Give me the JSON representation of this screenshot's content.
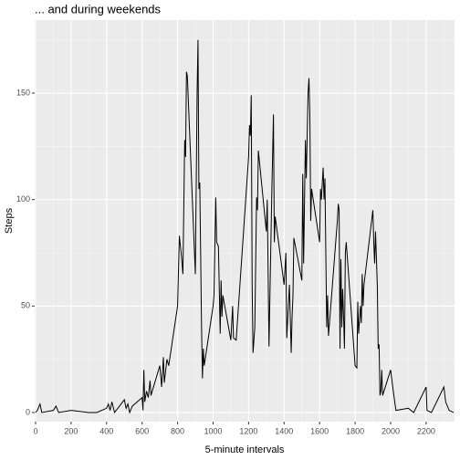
{
  "chart_data": {
    "type": "line",
    "title": "... and during weekends",
    "x_label": "5-minute intervals",
    "y_label": "Steps",
    "series": [
      {
        "name": "Steps",
        "color": "#000000",
        "x": [
          0,
          10,
          25,
          35,
          100,
          115,
          130,
          200,
          300,
          345,
          400,
          410,
          420,
          430,
          445,
          500,
          510,
          520,
          530,
          545,
          600,
          605,
          610,
          615,
          625,
          635,
          645,
          650,
          700,
          710,
          720,
          725,
          740,
          750,
          800,
          810,
          820,
          830,
          840,
          845,
          850,
          855,
          900,
          910,
          915,
          920,
          925,
          935,
          940,
          945,
          950,
          1000,
          1005,
          1015,
          1020,
          1030,
          1040,
          1045,
          1050,
          1055,
          1100,
          1110,
          1115,
          1130,
          1200,
          1205,
          1210,
          1215,
          1220,
          1225,
          1235,
          1245,
          1250,
          1255,
          1300,
          1305,
          1315,
          1330,
          1340,
          1345,
          1350,
          1400,
          1410,
          1415,
          1430,
          1440,
          1445,
          1450,
          1455,
          1500,
          1505,
          1510,
          1520,
          1525,
          1535,
          1540,
          1545,
          1550,
          1555,
          1600,
          1605,
          1610,
          1620,
          1625,
          1630,
          1640,
          1645,
          1650,
          1700,
          1705,
          1710,
          1715,
          1720,
          1725,
          1730,
          1735,
          1740,
          1745,
          1750,
          1800,
          1810,
          1815,
          1820,
          1830,
          1835,
          1840,
          1845,
          1850,
          1900,
          1905,
          1910,
          1915,
          1925,
          1930,
          1935,
          1940,
          1945,
          1950,
          1955,
          2000,
          2015,
          2030,
          2100,
          2130,
          2200,
          2205,
          2230,
          2300,
          2310,
          2330,
          2355
        ],
        "values": [
          0,
          1,
          4,
          0,
          1,
          3,
          0,
          1,
          0,
          0,
          2,
          4,
          1,
          5,
          0,
          6,
          2,
          4,
          0,
          3,
          7,
          1,
          20,
          5,
          10,
          7,
          15,
          8,
          22,
          12,
          26,
          14,
          25,
          22,
          50,
          83,
          75,
          65,
          128,
          120,
          160,
          158,
          65,
          150,
          175,
          105,
          108,
          40,
          16,
          30,
          22,
          50,
          55,
          101,
          80,
          78,
          37,
          62,
          45,
          55,
          34,
          50,
          35,
          34,
          120,
          135,
          130,
          149,
          60,
          28,
          40,
          101,
          95,
          123,
          85,
          100,
          31,
          100,
          140,
          80,
          92,
          60,
          75,
          35,
          60,
          28,
          45,
          55,
          82,
          62,
          112,
          70,
          128,
          110,
          150,
          157,
          140,
          90,
          105,
          80,
          105,
          100,
          115,
          100,
          110,
          40,
          55,
          36,
          90,
          98,
          95,
          30,
          72,
          40,
          58,
          45,
          30,
          75,
          80,
          22,
          21,
          52,
          37,
          50,
          42,
          65,
          50,
          60,
          95,
          80,
          70,
          85,
          60,
          30,
          32,
          8,
          10,
          20,
          8,
          20,
          10,
          1,
          2,
          0,
          12,
          1,
          0,
          12,
          5,
          1,
          0
        ]
      }
    ],
    "xlim": [
      -5,
      2360
    ],
    "ylim": [
      -4.3,
      184.3
    ],
    "xticks": [
      0,
      200,
      400,
      600,
      800,
      1000,
      1200,
      1400,
      1600,
      1800,
      2000,
      2200
    ],
    "yticks": [
      0,
      50,
      100,
      150
    ],
    "grid": true
  }
}
